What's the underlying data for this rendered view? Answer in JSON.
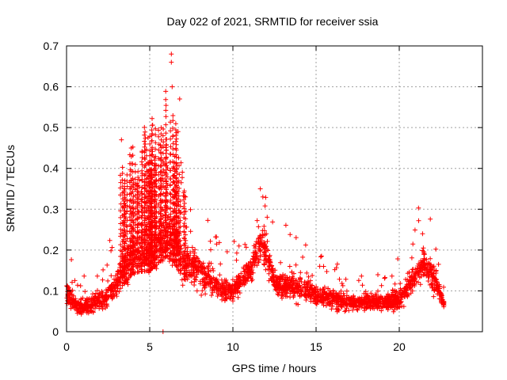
{
  "chart_data": {
    "type": "scatter",
    "title": "Day 022 of 2021, SRMTID for receiver ssia",
    "xlabel": "GPS time / hours",
    "ylabel": "SRMTID / TECUs",
    "xlim": [
      0,
      25
    ],
    "ylim": [
      0,
      0.7
    ],
    "x_ticks": [
      0,
      5,
      10,
      15,
      20
    ],
    "y_ticks": [
      0,
      0.1,
      0.2,
      0.3,
      0.4,
      0.5,
      0.6,
      0.7
    ],
    "x_tick_labels": [
      "0",
      "5",
      "10",
      "15",
      "20"
    ],
    "y_tick_labels": [
      "0",
      "0.1",
      "0.2",
      "0.3",
      "0.4",
      "0.5",
      "0.6",
      "0.7"
    ],
    "grid": true,
    "marker": "+",
    "color": "#ff0000",
    "x_range_data": [
      0,
      22.7
    ],
    "notable_points": [
      {
        "x": 3.3,
        "y": 0.47
      },
      {
        "x": 4.9,
        "y": 0.475
      },
      {
        "x": 6.3,
        "y": 0.68
      },
      {
        "x": 6.3,
        "y": 0.66
      },
      {
        "x": 6.35,
        "y": 0.6
      },
      {
        "x": 6.8,
        "y": 0.57
      },
      {
        "x": 6.7,
        "y": 0.49
      },
      {
        "x": 11.8,
        "y": 0.33
      },
      {
        "x": 21.4,
        "y": 0.24
      },
      {
        "x": 5.8,
        "y": 0.0
      }
    ],
    "envelope": [
      {
        "x": 0.0,
        "base": 0.1,
        "spread": 0.05
      },
      {
        "x": 0.5,
        "base": 0.065,
        "spread": 0.03
      },
      {
        "x": 1.0,
        "base": 0.06,
        "spread": 0.03
      },
      {
        "x": 2.0,
        "base": 0.075,
        "spread": 0.04
      },
      {
        "x": 2.8,
        "base": 0.1,
        "spread": 0.05
      },
      {
        "x": 3.3,
        "base": 0.15,
        "spread": 0.08
      },
      {
        "x": 4.0,
        "base": 0.19,
        "spread": 0.09
      },
      {
        "x": 5.0,
        "base": 0.2,
        "spread": 0.1
      },
      {
        "x": 6.0,
        "base": 0.24,
        "spread": 0.11
      },
      {
        "x": 6.5,
        "base": 0.22,
        "spread": 0.1
      },
      {
        "x": 7.0,
        "base": 0.17,
        "spread": 0.08
      },
      {
        "x": 8.0,
        "base": 0.15,
        "spread": 0.07
      },
      {
        "x": 9.0,
        "base": 0.11,
        "spread": 0.05
      },
      {
        "x": 10.0,
        "base": 0.1,
        "spread": 0.04
      },
      {
        "x": 11.0,
        "base": 0.15,
        "spread": 0.05
      },
      {
        "x": 11.8,
        "base": 0.22,
        "spread": 0.07
      },
      {
        "x": 12.5,
        "base": 0.12,
        "spread": 0.05
      },
      {
        "x": 14.0,
        "base": 0.11,
        "spread": 0.05
      },
      {
        "x": 15.0,
        "base": 0.09,
        "spread": 0.04
      },
      {
        "x": 16.0,
        "base": 0.08,
        "spread": 0.04
      },
      {
        "x": 17.0,
        "base": 0.07,
        "spread": 0.03
      },
      {
        "x": 18.0,
        "base": 0.075,
        "spread": 0.03
      },
      {
        "x": 19.0,
        "base": 0.07,
        "spread": 0.03
      },
      {
        "x": 20.0,
        "base": 0.08,
        "spread": 0.04
      },
      {
        "x": 21.0,
        "base": 0.14,
        "spread": 0.05
      },
      {
        "x": 21.5,
        "base": 0.17,
        "spread": 0.06
      },
      {
        "x": 22.2,
        "base": 0.12,
        "spread": 0.05
      },
      {
        "x": 22.7,
        "base": 0.065,
        "spread": 0.02
      }
    ]
  }
}
